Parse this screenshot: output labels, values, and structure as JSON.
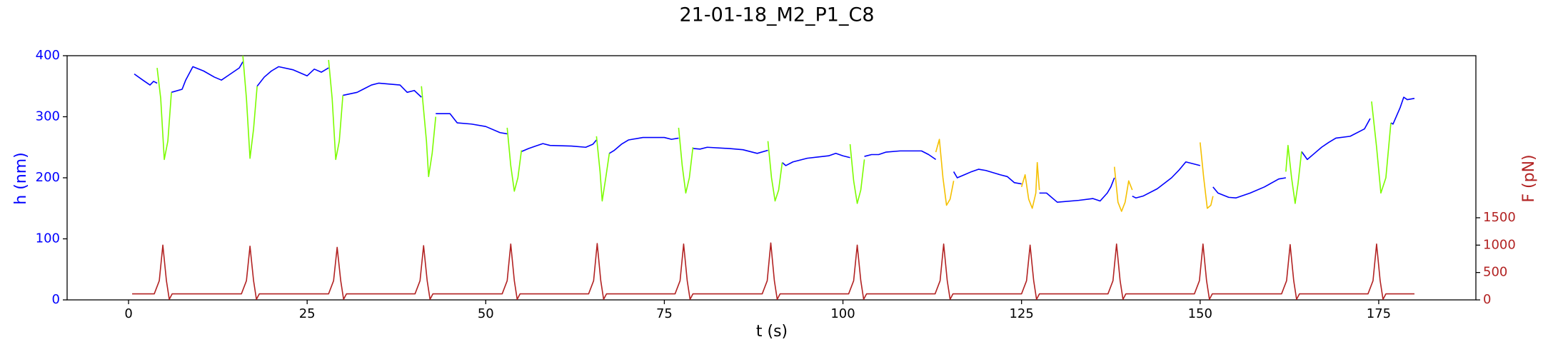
{
  "chart_data": {
    "type": "line",
    "title": "21-01-18_M2_P1_C8",
    "xlabel": "t (s)",
    "ylabel": "h (nm)",
    "y2label": "F (pN)",
    "xlim": [
      -8.6,
      188.6
    ],
    "xticks": [
      0,
      25,
      50,
      75,
      100,
      125,
      150,
      175
    ],
    "ylim": [
      0,
      400
    ],
    "yticks": [
      0,
      100,
      200,
      300,
      400
    ],
    "y2lim": [
      0,
      4460
    ],
    "y2ticks": [
      0,
      500,
      1000,
      1500
    ],
    "ylabel_color": "#0000ff",
    "y2label_color": "#b22222",
    "series": [
      {
        "color": "#0000ff",
        "x": [
          0.8,
          2,
          3,
          3.5,
          4,
          5,
          6,
          7.5,
          8,
          9,
          10.5,
          12,
          13,
          14,
          15.5,
          16,
          17,
          18,
          19,
          20,
          21,
          23,
          25,
          26,
          27,
          28,
          29,
          30,
          32,
          34,
          35,
          38,
          39,
          40,
          41,
          42,
          43,
          45,
          46,
          48,
          50,
          52,
          53,
          54,
          55,
          56,
          57,
          58,
          59,
          62,
          64,
          65,
          65.5,
          66,
          67.3,
          68,
          69,
          70,
          72,
          75,
          76,
          77,
          78,
          79,
          80,
          81,
          84,
          86,
          88,
          89.5,
          90,
          91.5,
          92,
          93,
          95,
          98,
          99,
          100,
          101,
          102,
          103,
          104,
          105,
          106,
          108,
          111,
          112,
          113,
          114,
          115.5,
          116,
          117,
          118,
          119,
          120,
          122,
          123,
          124,
          125,
          126,
          127.5,
          128.5,
          130,
          133,
          135,
          136,
          137,
          137.5,
          138,
          139,
          140.5,
          141,
          142,
          144,
          146,
          147,
          148,
          150,
          151,
          151.8,
          152.5,
          154,
          155,
          157,
          159,
          161,
          162,
          163,
          164.2,
          165,
          166,
          167,
          168,
          169,
          171,
          173,
          173.8,
          175,
          176.7,
          177,
          178,
          178.5,
          179,
          180
        ],
        "values": [
          370,
          360,
          352,
          358,
          355,
          null,
          340,
          345,
          360,
          382,
          375,
          365,
          360,
          368,
          380,
          390,
          null,
          350,
          365,
          375,
          382,
          377,
          367,
          378,
          373,
          380,
          null,
          335,
          340,
          352,
          355,
          352,
          340,
          343,
          332,
          null,
          305,
          305,
          290,
          288,
          284,
          274,
          272,
          null,
          243,
          248,
          252,
          256,
          253,
          252,
          250,
          255,
          262,
          null,
          240,
          245,
          255,
          262,
          266,
          266,
          263,
          265,
          null,
          248,
          247,
          250,
          248,
          246,
          240,
          245,
          null,
          225,
          220,
          226,
          232,
          236,
          240,
          236,
          233,
          null,
          235,
          238,
          238,
          242,
          244,
          244,
          238,
          230,
          null,
          210,
          200,
          205,
          210,
          214,
          212,
          205,
          202,
          192,
          190,
          null,
          175,
          175,
          160,
          163,
          166,
          162,
          175,
          185,
          200,
          null,
          170,
          167,
          170,
          182,
          200,
          212,
          226,
          220,
          null,
          185,
          175,
          168,
          167,
          175,
          185,
          198,
          200,
          null,
          243,
          230,
          240,
          250,
          258,
          265,
          268,
          280,
          297,
          null,
          290,
          288,
          315,
          332,
          328,
          330
        ]
      },
      {
        "color": "#7cfc00",
        "x": [
          4,
          4.5,
          5,
          5.5,
          6,
          11,
          16,
          16.5,
          17,
          17.5,
          18,
          23,
          28,
          28.5,
          29,
          29.5,
          30,
          35,
          41,
          41.7,
          42,
          42.5,
          43,
          48,
          53,
          53.5,
          54,
          54.5,
          55,
          60,
          65.5,
          66,
          66.3,
          66.8,
          67.3,
          72,
          77,
          77.5,
          78,
          78.5,
          79,
          84,
          89.5,
          90,
          90.5,
          91,
          91.5,
          96,
          101,
          101.5,
          102,
          102.5,
          103,
          132,
          162,
          162.3,
          162.8,
          163.3,
          163.7,
          164.2,
          170,
          174,
          174.7,
          175.3,
          176,
          176.7
        ],
        "values": [
          380,
          330,
          230,
          260,
          340,
          null,
          400,
          330,
          232,
          280,
          350,
          null,
          393,
          330,
          230,
          260,
          335,
          null,
          350,
          260,
          202,
          240,
          300,
          null,
          282,
          220,
          178,
          200,
          245,
          null,
          268,
          210,
          162,
          200,
          240,
          null,
          282,
          220,
          175,
          200,
          250,
          null,
          260,
          200,
          162,
          180,
          225,
          null,
          255,
          195,
          158,
          180,
          230,
          null,
          210,
          253,
          200,
          158,
          190,
          243,
          null,
          325,
          250,
          175,
          200,
          290
        ]
      },
      {
        "color": "#f5c000",
        "x": [
          113,
          113.5,
          114,
          114.5,
          115,
          115.5,
          120,
          125,
          125.5,
          126,
          126.5,
          127,
          127.2,
          127.5,
          133,
          138,
          138.5,
          139,
          139.5,
          140,
          140.5,
          145,
          150,
          150.5,
          151,
          151.5,
          151.8
        ],
        "values": [
          242,
          263,
          200,
          155,
          165,
          195,
          null,
          185,
          205,
          165,
          150,
          175,
          225,
          180,
          null,
          218,
          160,
          145,
          160,
          195,
          180,
          null,
          258,
          200,
          150,
          155,
          170
        ]
      },
      {
        "color": "#b22222",
        "axis": "y2",
        "x": [
          0.5,
          3.6,
          4.3,
          4.8,
          5.3,
          5.7,
          6.1,
          15.8,
          16.5,
          17,
          17.5,
          17.9,
          18.3,
          28,
          28.7,
          29.2,
          29.7,
          30.1,
          30.5,
          40.1,
          40.8,
          41.3,
          41.8,
          42.2,
          42.6,
          52.3,
          53,
          53.5,
          54,
          54.4,
          54.8,
          64.4,
          65.1,
          65.6,
          66.1,
          66.5,
          66.9,
          76.5,
          77.2,
          77.7,
          78.2,
          78.6,
          79,
          88.7,
          89.4,
          89.9,
          90.4,
          90.8,
          91.2,
          100.8,
          101.5,
          102,
          102.5,
          102.9,
          103.3,
          112.9,
          113.6,
          114.1,
          114.6,
          115,
          115.4,
          125,
          125.7,
          126.2,
          126.7,
          127.1,
          127.5,
          137.1,
          137.8,
          138.3,
          138.8,
          139.2,
          139.6,
          149.2,
          149.9,
          150.4,
          150.9,
          151.3,
          151.7,
          161.4,
          162.1,
          162.6,
          163.1,
          163.5,
          163.9,
          173.5,
          174.2,
          174.7,
          175.2,
          175.6,
          176,
          180
        ],
        "values": [
          110,
          110,
          350,
          1000,
          350,
          10,
          110,
          110,
          350,
          980,
          350,
          10,
          110,
          110,
          350,
          960,
          350,
          10,
          110,
          110,
          350,
          990,
          350,
          10,
          110,
          110,
          350,
          1020,
          350,
          10,
          110,
          110,
          350,
          1030,
          350,
          10,
          110,
          110,
          350,
          1020,
          350,
          10,
          110,
          110,
          350,
          1040,
          350,
          10,
          110,
          110,
          350,
          1000,
          350,
          10,
          110,
          110,
          350,
          1020,
          350,
          10,
          110,
          110,
          350,
          1000,
          350,
          10,
          110,
          110,
          350,
          1020,
          350,
          10,
          110,
          110,
          350,
          1020,
          350,
          10,
          110,
          110,
          350,
          1010,
          350,
          10,
          110,
          110,
          350,
          1020,
          350,
          10,
          110,
          110
        ]
      }
    ]
  }
}
